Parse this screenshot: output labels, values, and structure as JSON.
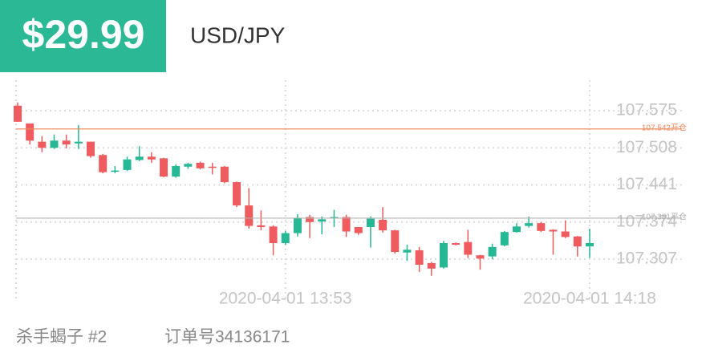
{
  "header": {
    "price": "$29.99",
    "symbol": "USD/JPY"
  },
  "footer": {
    "trader": "杀手蝎子 #2",
    "order_label": "订单号",
    "order_number": "34136171"
  },
  "chart_data": {
    "type": "candlestick",
    "categories": [
      null,
      null,
      null,
      null,
      null,
      null,
      null,
      null,
      null,
      null,
      null,
      null,
      null,
      null,
      null,
      null,
      null,
      null,
      null,
      null,
      null,
      null,
      "2020-04-01 13:53",
      null,
      null,
      null,
      null,
      null,
      null,
      null,
      null,
      null,
      null,
      null,
      null,
      null,
      null,
      null,
      null,
      null,
      null,
      null,
      null,
      null,
      null,
      null,
      null,
      "2020-04-01 14:18"
    ],
    "open": [
      107.584,
      107.552,
      107.519,
      107.508,
      107.521,
      107.516,
      107.519,
      107.495,
      107.465,
      107.468,
      107.486,
      107.492,
      107.489,
      107.456,
      107.474,
      107.481,
      107.474,
      107.474,
      107.446,
      107.404,
      107.368,
      107.366,
      107.336,
      107.354,
      107.383,
      107.375,
      107.382,
      107.383,
      107.365,
      107.365,
      107.378,
      107.359,
      107.319,
      107.323,
      107.3,
      107.292,
      107.336,
      107.338,
      107.314,
      107.312,
      107.332,
      107.356,
      107.367,
      107.372,
      107.36,
      107.357,
      107.348,
      107.33
    ],
    "high": [
      107.59,
      107.552,
      107.529,
      107.532,
      107.532,
      107.549,
      107.519,
      107.497,
      107.475,
      107.492,
      107.511,
      107.5,
      107.49,
      107.478,
      107.481,
      107.483,
      107.481,
      107.475,
      107.447,
      107.435,
      107.395,
      107.368,
      107.358,
      107.388,
      107.387,
      107.384,
      107.396,
      107.387,
      107.365,
      107.384,
      107.401,
      107.36,
      107.333,
      107.329,
      107.302,
      107.34,
      107.337,
      107.36,
      107.315,
      107.335,
      107.358,
      107.372,
      107.384,
      107.374,
      107.361,
      107.377,
      107.349,
      107.362
    ],
    "low": [
      107.555,
      107.514,
      107.5,
      107.506,
      107.507,
      107.506,
      107.49,
      107.462,
      107.462,
      107.466,
      107.484,
      107.481,
      107.455,
      107.454,
      107.47,
      107.469,
      107.46,
      107.444,
      107.401,
      107.362,
      107.359,
      107.314,
      107.333,
      107.348,
      107.345,
      107.352,
      107.365,
      107.347,
      107.351,
      107.328,
      107.355,
      107.317,
      107.304,
      107.284,
      107.277,
      107.29,
      107.332,
      107.309,
      107.288,
      107.307,
      107.33,
      107.355,
      107.364,
      107.356,
      107.315,
      107.345,
      107.312,
      107.309
    ],
    "close": [
      107.555,
      107.521,
      107.508,
      107.521,
      107.514,
      107.519,
      107.493,
      107.464,
      107.467,
      107.487,
      107.492,
      107.487,
      107.456,
      107.475,
      107.479,
      107.471,
      107.473,
      107.446,
      107.404,
      107.367,
      107.365,
      107.336,
      107.354,
      107.381,
      107.374,
      107.379,
      107.383,
      107.357,
      107.354,
      107.38,
      107.359,
      107.32,
      107.324,
      107.297,
      107.29,
      107.336,
      107.333,
      107.315,
      107.308,
      107.329,
      107.356,
      107.366,
      107.372,
      107.358,
      107.357,
      107.347,
      107.33,
      107.336
    ],
    "up_color": "#26b795",
    "down_color": "#ef5b5e",
    "ylim": [
      107.239,
      107.63
    ],
    "yticks": [
      107.575,
      107.508,
      107.441,
      107.374,
      107.307
    ],
    "grid": true,
    "reference_lines": [
      {
        "value": 107.542,
        "label": "107.542开仓",
        "color": "#f08a5d"
      },
      {
        "value": 107.381,
        "label": "107.381平仓",
        "color": "#b0b0b0"
      }
    ]
  }
}
